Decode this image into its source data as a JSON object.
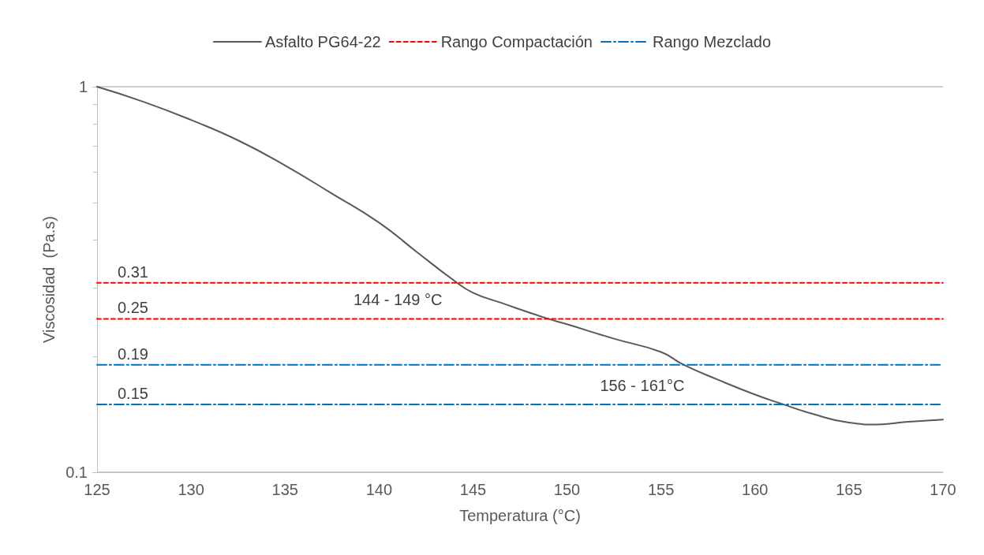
{
  "chart_data": {
    "type": "line",
    "xlabel": "Temperatura (°C)",
    "ylabel": "Viscosidad  (Pa.s)",
    "log": "y",
    "xlim": [
      125,
      170
    ],
    "xticks": [
      125,
      130,
      135,
      140,
      145,
      150,
      155,
      160,
      165,
      170
    ],
    "ylim": [
      0.1,
      1
    ],
    "yticks": [
      0.1,
      1
    ],
    "grid": "y",
    "legend": "top",
    "marker": "none",
    "series": [
      {
        "name": "Asfalto PG64-22",
        "color": "#595959",
        "line_style": "solid",
        "x": [
          125,
          127.5,
          130,
          132.5,
          135,
          137.5,
          140,
          142,
          144,
          145,
          146.5,
          149,
          150,
          152.5,
          155,
          156.2,
          158,
          160,
          161.5,
          163,
          165,
          166.5,
          168,
          170
        ],
        "values": [
          1,
          0.913,
          0.82,
          0.726,
          0.625,
          0.528,
          0.444,
          0.373,
          0.314,
          0.292,
          0.275,
          0.25,
          0.242,
          0.222,
          0.205,
          0.19,
          0.174,
          0.159,
          0.15,
          0.142,
          0.1345,
          0.133,
          0.135,
          0.137
        ]
      },
      {
        "name": "Rango Compactación",
        "color": "#ff0000",
        "line_style": "dashed",
        "x": [
          125,
          170
        ],
        "values": [
          0.31,
          0.31
        ]
      },
      {
        "color": "#ff0000",
        "line_style": "dashed",
        "x": [
          125,
          170
        ],
        "values": [
          0.25,
          0.25
        ]
      },
      {
        "name": "Rango Mezclado",
        "color": "#0070c0",
        "line_style": "dashdot",
        "x": [
          125,
          170
        ],
        "values": [
          0.19,
          0.19
        ]
      },
      {
        "color": "#0070c0",
        "line_style": "dashdot",
        "x": [
          125,
          170
        ],
        "values": [
          0.15,
          0.15
        ]
      }
    ],
    "annotations": [
      {
        "text": "0.31",
        "x": 125,
        "y": 0.31
      },
      {
        "text": "0.25",
        "x": 125,
        "y": 0.25
      },
      {
        "text": "0.19",
        "x": 125,
        "y": 0.19
      },
      {
        "text": "0.15",
        "x": 125,
        "y": 0.15
      },
      {
        "text": "144 - 149 °C",
        "x": 141,
        "y": 0.25
      },
      {
        "text": "156 - 161°C",
        "x": 154,
        "y": 0.15
      }
    ]
  }
}
